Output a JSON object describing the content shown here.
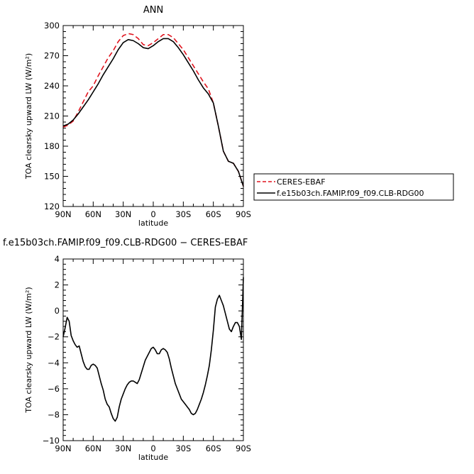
{
  "chart_data": [
    {
      "type": "line",
      "title": "ANN",
      "xlabel": "latitude",
      "ylabel": "TOA clearsky upward LW (W/m²)",
      "xlim": [
        90,
        -90
      ],
      "ylim": [
        120,
        300
      ],
      "xticks": [
        90,
        60,
        30,
        0,
        -30,
        -60,
        -90
      ],
      "xticklabels": [
        "90N",
        "60N",
        "30N",
        "0",
        "30S",
        "60S",
        "90S"
      ],
      "yticks": [
        120,
        150,
        180,
        210,
        240,
        270,
        300
      ],
      "yticklabels": [
        "120",
        "150",
        "180",
        "210",
        "240",
        "270",
        "300"
      ],
      "legend": "outside-right-bottom",
      "series": [
        {
          "name": "CERES-EBAF",
          "color": "#e0141e",
          "dash": "dashed",
          "x": [
            90,
            85,
            80,
            75,
            70,
            65,
            60,
            55,
            50,
            45,
            40,
            35,
            30,
            25,
            20,
            15,
            10,
            5,
            0,
            -5,
            -10,
            -15,
            -20,
            -25,
            -30,
            -35,
            -40,
            -45,
            -50,
            -55,
            -60,
            -65,
            -70,
            -75,
            -80,
            -85,
            -90
          ],
          "y": [
            199,
            201,
            205,
            214,
            224,
            234,
            240,
            250,
            259,
            268,
            275,
            284,
            290,
            292,
            291,
            287,
            281,
            280,
            283,
            287,
            291,
            291,
            288,
            282,
            276,
            268,
            260,
            252,
            244,
            237,
            223,
            200,
            175,
            165,
            163,
            155,
            140
          ]
        },
        {
          "name": "f.e15b03ch.FAMIP.f09_f09.CLB-RDG00",
          "color": "#000000",
          "dash": "solid",
          "x": [
            90,
            85,
            80,
            75,
            70,
            65,
            60,
            55,
            50,
            45,
            40,
            35,
            30,
            25,
            20,
            15,
            10,
            5,
            0,
            -5,
            -10,
            -15,
            -20,
            -25,
            -30,
            -35,
            -40,
            -45,
            -50,
            -55,
            -60,
            -65,
            -70,
            -75,
            -80,
            -85,
            -90
          ],
          "y": [
            200,
            202,
            206,
            212,
            219,
            226,
            234,
            242,
            251,
            259,
            267,
            276,
            283,
            286,
            285,
            282,
            278,
            277,
            280,
            284,
            287,
            287,
            284,
            278,
            271,
            263,
            255,
            246,
            238,
            232,
            223,
            200,
            175,
            165,
            163,
            155,
            140
          ]
        }
      ]
    },
    {
      "type": "line",
      "title": "f.e15b03ch.FAMIP.f09_f09.CLB-RDG00 − CERES-EBAF",
      "xlabel": "latitude",
      "ylabel": "TOA clearsky upward LW (W/m²)",
      "xlim": [
        90,
        -90
      ],
      "ylim": [
        -10,
        4
      ],
      "xticks": [
        90,
        60,
        30,
        0,
        -30,
        -60,
        -90
      ],
      "xticklabels": [
        "90N",
        "60N",
        "30N",
        "0",
        "30S",
        "60S",
        "90S"
      ],
      "yticks": [
        -10,
        -8,
        -6,
        -4,
        -2,
        0,
        2,
        4
      ],
      "yticklabels": [
        "−10",
        "−8",
        "−6",
        "−4",
        "−2",
        "0",
        "2",
        "4"
      ],
      "series": [
        {
          "color": "#000000",
          "dash": "solid",
          "x": [
            90,
            88,
            86,
            84,
            82,
            80,
            78,
            76,
            74,
            72,
            70,
            68,
            66,
            64,
            62,
            60,
            58,
            56,
            54,
            52,
            50,
            48,
            46,
            44,
            42,
            40,
            38,
            36,
            34,
            32,
            30,
            28,
            26,
            24,
            22,
            20,
            18,
            16,
            14,
            12,
            10,
            8,
            6,
            4,
            2,
            0,
            -2,
            -4,
            -6,
            -8,
            -10,
            -12,
            -14,
            -16,
            -18,
            -20,
            -22,
            -24,
            -26,
            -28,
            -30,
            -32,
            -34,
            -36,
            -38,
            -40,
            -42,
            -44,
            -46,
            -48,
            -50,
            -52,
            -54,
            -56,
            -58,
            -60,
            -62,
            -64,
            -66,
            -68,
            -70,
            -72,
            -74,
            -76,
            -78,
            -80,
            -82,
            -84,
            -86,
            -88,
            -90
          ],
          "y": [
            -2.0,
            -1.3,
            -0.5,
            -0.8,
            -1.9,
            -2.3,
            -2.6,
            -2.8,
            -2.7,
            -3.3,
            -3.9,
            -4.3,
            -4.5,
            -4.5,
            -4.2,
            -4.1,
            -4.2,
            -4.4,
            -5.0,
            -5.6,
            -6.1,
            -6.8,
            -7.2,
            -7.4,
            -7.9,
            -8.3,
            -8.5,
            -8.2,
            -7.4,
            -6.8,
            -6.4,
            -6.0,
            -5.7,
            -5.5,
            -5.4,
            -5.4,
            -5.5,
            -5.6,
            -5.3,
            -4.8,
            -4.3,
            -3.8,
            -3.5,
            -3.2,
            -2.9,
            -2.8,
            -3.0,
            -3.3,
            -3.3,
            -3.0,
            -2.9,
            -3.0,
            -3.2,
            -3.7,
            -4.4,
            -5.0,
            -5.6,
            -6.0,
            -6.4,
            -6.8,
            -7.0,
            -7.2,
            -7.4,
            -7.6,
            -7.9,
            -8.0,
            -7.9,
            -7.6,
            -7.2,
            -6.8,
            -6.3,
            -5.7,
            -5.0,
            -4.2,
            -3.0,
            -1.5,
            0.3,
            0.9,
            1.2,
            0.8,
            0.4,
            -0.2,
            -0.8,
            -1.4,
            -1.6,
            -1.2,
            -0.9,
            -0.9,
            -1.2,
            -2.2,
            2.6
          ]
        }
      ]
    }
  ]
}
